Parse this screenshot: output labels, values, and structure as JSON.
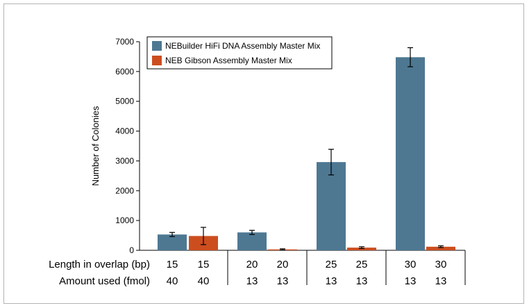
{
  "chart_data": {
    "type": "bar",
    "ylabel": "Number of Colonies",
    "ylim": [
      0,
      7000
    ],
    "yticks": [
      0,
      1000,
      2000,
      3000,
      4000,
      5000,
      6000,
      7000
    ],
    "grid": false,
    "legend_position": "top-left",
    "row_labels": [
      "Length in overlap (bp)",
      "Amount used (fmol)"
    ],
    "groups": [
      {
        "overlap": [
          "15",
          "15"
        ],
        "amount": [
          "40",
          "40"
        ]
      },
      {
        "overlap": [
          "20",
          "20"
        ],
        "amount": [
          "13",
          "13"
        ]
      },
      {
        "overlap": [
          "25",
          "25"
        ],
        "amount": [
          "13",
          "13"
        ]
      },
      {
        "overlap": [
          "30",
          "30"
        ],
        "amount": [
          "13",
          "13"
        ]
      }
    ],
    "series": [
      {
        "name": "NEBuilder HiFi DNA Assembly Master Mix",
        "color": "#4e7892",
        "values": [
          530,
          600,
          2960,
          6480
        ],
        "errors": [
          70,
          70,
          430,
          320
        ]
      },
      {
        "name": "NEB Gibson Assembly Master Mix",
        "color": "#cc4e1f",
        "values": [
          480,
          30,
          90,
          120
        ],
        "errors": [
          290,
          20,
          30,
          30
        ]
      }
    ]
  }
}
